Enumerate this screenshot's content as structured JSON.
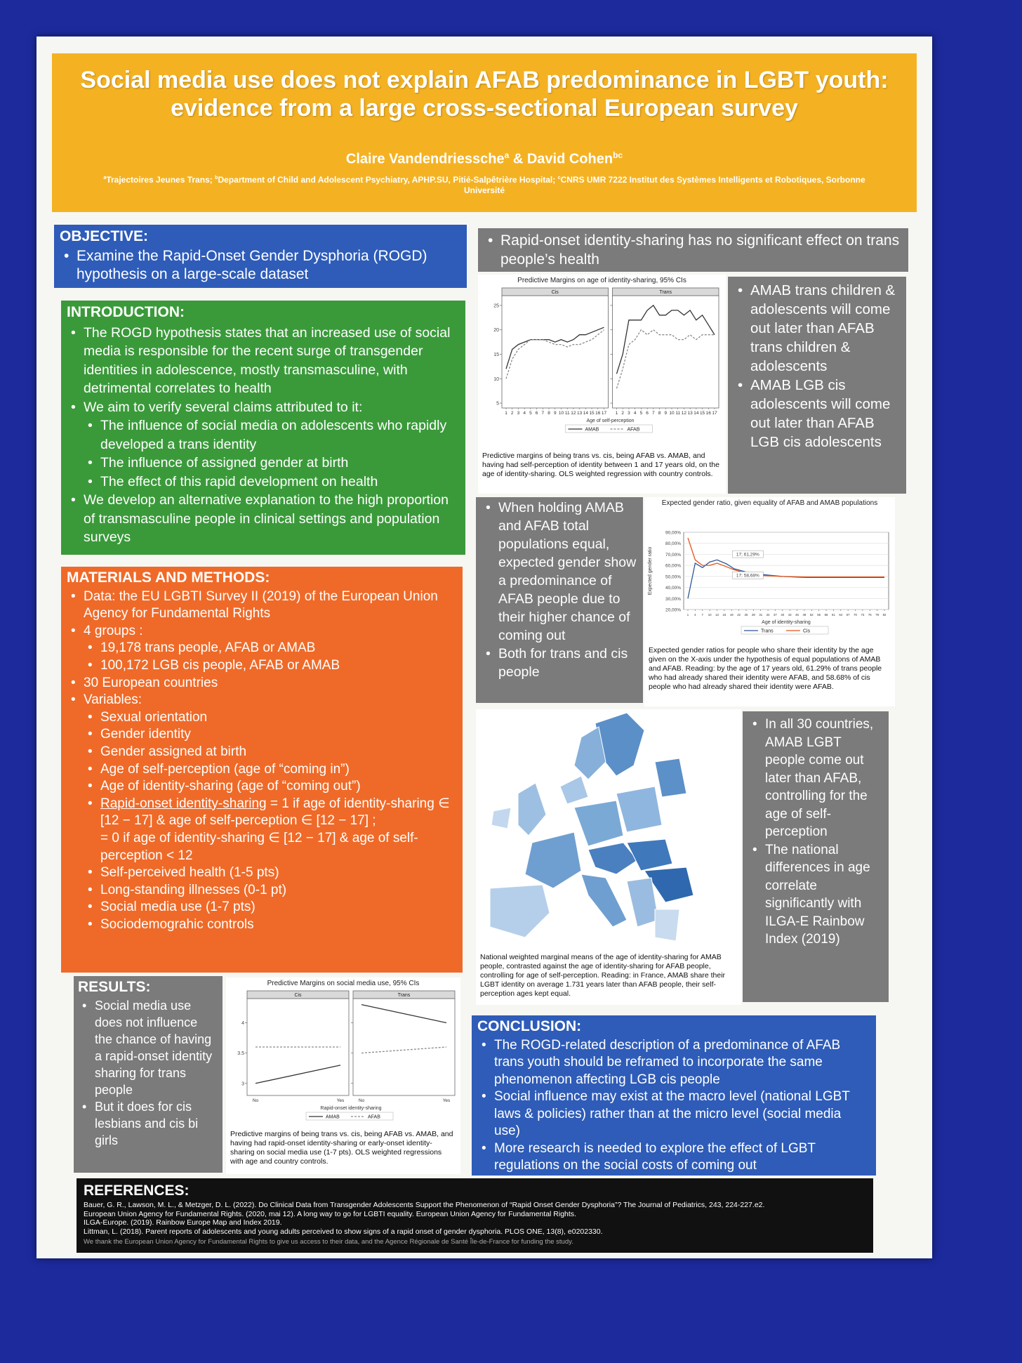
{
  "header": {
    "title": "Social media use does not explain AFAB predominance in LGBT youth: evidence from a large cross-sectional European survey",
    "authors": [
      {
        "name": "Claire Vandendriessche",
        "sup": "a"
      },
      {
        "name": "David Cohen",
        "sup": "bc"
      }
    ],
    "author_sep": "&",
    "affiliations": [
      {
        "sup": "a",
        "text": "Trajectoires Jeunes Trans;"
      },
      {
        "sup": "b",
        "text": "Department of Child and Adolescent Psychiatry, APHP.SU, Pitié-Salpêtrière Hospital;"
      },
      {
        "sup": "c",
        "text": "CNRS UMR 7222 Institut des Systèmes Intelligents et Robotiques, Sorbonne Université"
      }
    ]
  },
  "objective": {
    "heading": "OBJECTIVE:",
    "items": [
      {
        "text": "Examine the Rapid-Onset Gender Dysphoria (ROGD) hypothesis on a large-scale dataset"
      }
    ]
  },
  "introduction": {
    "heading": "INTRODUCTION:",
    "items": [
      {
        "text": "The ROGD hypothesis states that an increased use of social media is responsible for the recent surge of transgender identities in adolescence, mostly transmasculine, with detrimental correlates to health"
      },
      {
        "text": "We aim to verify several claims attributed to it:",
        "sub": [
          {
            "text": "The influence of social media on adolescents who rapidly developed a trans identity"
          },
          {
            "text": "The influence of assigned gender at birth"
          },
          {
            "text": "The effect of this rapid development on health"
          }
        ]
      },
      {
        "text": "We develop an alternative explanation to the high proportion of transmasculine people in clinical settings and population surveys"
      }
    ]
  },
  "methods": {
    "heading": "MATERIALS AND METHODS:",
    "items": [
      {
        "text": "Data: the EU LGBTI Survey II (2019) of the European Union Agency for Fundamental Rights"
      },
      {
        "text": "4 groups :",
        "sub": [
          {
            "text": "19,178 trans people, AFAB or AMAB"
          },
          {
            "text": "100,172 LGB cis people, AFAB or AMAB"
          }
        ]
      },
      {
        "text": "30 European countries"
      },
      {
        "text": "Variables:",
        "sub": [
          {
            "text": "Sexual orientation"
          },
          {
            "text": "Gender identity"
          },
          {
            "text": "Gender assigned at birth"
          },
          {
            "text": "Age of self-perception (age of “coming in”)"
          },
          {
            "text": "Age of identity-sharing (age of “coming out”)"
          },
          {
            "u": "Rapid-onset identity-sharing",
            "text": " = 1 if age of identity-sharing ∈ [12 − 17] & age of self-perception ∈ [12 − 17] ;",
            "more": "= 0 if age of identity-sharing ∈ [12 − 17] & age of self-perception < 12"
          },
          {
            "text": "Self-perceived health (1-5 pts)"
          },
          {
            "text": "Long-standing illnesses (0-1 pt)"
          },
          {
            "text": "Social media use (1-7 pts)"
          },
          {
            "text": "Sociodemograhic controls"
          }
        ]
      }
    ]
  },
  "results": {
    "heading": "RESULTS:",
    "items": [
      {
        "text": "Social media use does not influence the chance of having a rapid-onset identity sharing for trans people"
      },
      {
        "text": "But it does for cis lesbians and cis bi girls"
      }
    ]
  },
  "health": {
    "items": [
      {
        "text": "Rapid-onset identity-sharing has no significant effect on trans people’s health"
      }
    ]
  },
  "findings_1": {
    "items": [
      {
        "text": "AMAB trans children & adolescents will come out later than AFAB trans children & adolescents"
      },
      {
        "text": "AMAB LGB cis adolescents will come out later than AFAB LGB cis adolescents"
      }
    ]
  },
  "findings_2": {
    "items": [
      {
        "text": "When holding AMAB and AFAB total populations equal, expected gender show a predominance of AFAB people due to their higher chance of coming out"
      },
      {
        "text": "Both for trans and cis people"
      }
    ]
  },
  "findings_3": {
    "items": [
      {
        "text": "In all 30 countries, AMAB LGBT people come out later than AFAB, controlling for the age of self-perception"
      },
      {
        "text": "The national differences in age correlate significantly with ILGA-E Rainbow Index (2019)"
      }
    ]
  },
  "conclusion": {
    "heading": "CONCLUSION:",
    "items": [
      {
        "text": "The ROGD-related description of a predominance of AFAB trans youth should be reframed to incorporate the same phenomenon affecting LGB cis people"
      },
      {
        "text": "Social influence may exist at the macro level (national LGBT laws & policies) rather than at the micro level (social media use)"
      },
      {
        "text": "More research is needed to explore the effect of LGBT regulations on the social costs of coming out"
      }
    ]
  },
  "references": {
    "heading": "REFERENCES:",
    "items": [
      "Bauer, G. R., Lawson, M. L., & Metzger, D. L. (2022). Do Clinical Data from Transgender Adolescents Support the Phenomenon of “Rapid Onset Gender Dysphoria”? The Journal of Pediatrics, 243, 224-227.e2.",
      "European Union Agency for Fundamental Rights. (2020, mai 12). A long way to go for LGBTI equality. European Union Agency for Fundamental Rights.",
      "ILGA-Europe. (2019). Rainbow Europe Map and Index 2019.",
      "Littman, L. (2018). Parent reports of adolescents and young adults perceived to show signs of a rapid onset of gender dysphoria. PLOS ONE, 13(8), e0202330."
    ],
    "thanks": "We thank the European Union Agency for Fundamental Rights to give us access to their data, and the Agence Régionale de Santé Île-de-France for funding the study."
  },
  "figures": {
    "identity_sharing": {
      "type": "line",
      "title": "Predictive Margins on age of identity-sharing, 95% CIs",
      "x_label": "Age of self-perception",
      "x": [
        1,
        2,
        3,
        4,
        5,
        6,
        7,
        8,
        9,
        10,
        11,
        12,
        13,
        14,
        15,
        16,
        17
      ],
      "xlim": [
        1,
        17
      ],
      "xticks": [
        1,
        2,
        3,
        4,
        5,
        6,
        7,
        8,
        9,
        10,
        11,
        12,
        13,
        14,
        15,
        16,
        17
      ],
      "ylim": [
        4,
        27
      ],
      "yticks": [
        5,
        10,
        15,
        20,
        25
      ],
      "panels": [
        {
          "name": "Cis",
          "series": [
            {
              "name": "AMAB",
              "color": "#333333",
              "values": [
                12,
                16,
                17,
                17.5,
                18,
                18,
                18,
                18,
                17.5,
                18,
                17.5,
                18,
                19,
                19,
                19.5,
                20,
                20.5
              ]
            },
            {
              "name": "AFAB",
              "color": "#8a8a8a",
              "dashed": true,
              "values": [
                10,
                14,
                16,
                17,
                18,
                18,
                18,
                17.5,
                17,
                17,
                16.5,
                17,
                17,
                17.5,
                18,
                19,
                20
              ]
            }
          ]
        },
        {
          "name": "Trans",
          "series": [
            {
              "name": "AMAB",
              "color": "#333333",
              "values": [
                11,
                15,
                22,
                22,
                22,
                24,
                25,
                23,
                23,
                24,
                24,
                23,
                24,
                22,
                23,
                21,
                19
              ]
            },
            {
              "name": "AFAB",
              "color": "#8a8a8a",
              "dashed": true,
              "values": [
                8,
                12,
                17,
                18,
                20,
                19,
                20,
                19,
                19,
                19,
                18,
                18,
                19,
                18,
                19,
                19,
                19
              ]
            }
          ]
        }
      ],
      "caption": "Predictive margins of being trans vs. cis, being AFAB vs. AMAB, and having had self-perception of identity between 1 and 17 years old, on the age of identity-sharing. OLS weighted regression with country controls."
    },
    "gender_ratio": {
      "type": "line",
      "title": "Expected gender ratio, given equality of AFAB and AMAB populations",
      "x_label": "Age of identity-sharing",
      "y_label": "Expected gender ratio",
      "x": [
        1,
        4,
        7,
        10,
        13,
        17,
        20,
        25,
        30,
        40,
        50,
        60,
        70,
        82
      ],
      "xlim": [
        1,
        82
      ],
      "xticks": [
        1,
        4,
        7,
        10,
        13,
        16,
        19,
        22,
        25,
        28,
        31,
        34,
        37,
        40,
        43,
        46,
        49,
        52,
        55,
        58,
        61,
        64,
        67,
        70,
        73,
        76,
        79,
        82
      ],
      "ylim": [
        20,
        90
      ],
      "yticks": [
        {
          "value": 20,
          "label": "20,00%"
        },
        {
          "value": 30,
          "label": "30,00%"
        },
        {
          "value": 40,
          "label": "40,00%"
        },
        {
          "value": 50,
          "label": "50,00%"
        },
        {
          "value": 60,
          "label": "60,00%"
        },
        {
          "value": 70,
          "label": "70,00%"
        },
        {
          "value": 80,
          "label": "80,00%"
        },
        {
          "value": 90,
          "label": "90,00%"
        }
      ],
      "grid": true,
      "series": [
        {
          "name": "Trans",
          "color": "#2f5597",
          "values": [
            30,
            62,
            58,
            63,
            65,
            61.29,
            57,
            54,
            52,
            50,
            49,
            49,
            49,
            49
          ],
          "annotation": "17; 61,29%"
        },
        {
          "name": "Cis",
          "color": "#e2541b",
          "values": [
            85,
            65,
            60,
            60,
            62,
            58.68,
            56,
            53,
            51,
            50,
            49.5,
            49.5,
            49.5,
            49.5
          ],
          "annotation": "17; 58,68%"
        }
      ],
      "caption": "Expected gender ratios for people who share their identity by the age given on the X-axis under the hypothesis of equal populations of AMAB and AFAB. Reading: by the age of 17 years old, 61.29% of trans people who had already shared their identity were AFAB, and 58.68% of cis people who had already shared their identity were AFAB."
    },
    "social_media": {
      "type": "line",
      "title": "Predictive Margins on social media use, 95% CIs",
      "x_label": "Rapid-onset identity-sharing",
      "categories": [
        "No",
        "Yes"
      ],
      "ylim": [
        2.8,
        4.4
      ],
      "yticks": [
        3,
        3.5,
        4
      ],
      "panels": [
        {
          "name": "Cis",
          "series": [
            {
              "name": "AMAB",
              "color": "#333333",
              "values": [
                3.0,
                3.3
              ]
            },
            {
              "name": "AFAB",
              "color": "#8a8a8a",
              "dashed": true,
              "values": [
                3.6,
                3.6
              ]
            }
          ]
        },
        {
          "name": "Trans",
          "series": [
            {
              "name": "AMAB",
              "color": "#333333",
              "values": [
                4.3,
                4.0
              ]
            },
            {
              "name": "AFAB",
              "color": "#8a8a8a",
              "dashed": true,
              "values": [
                3.5,
                3.6
              ]
            }
          ]
        }
      ],
      "caption": "Predictive margins of being trans vs. cis, being AFAB vs. AMAB, and having had rapid-onset identity-sharing or early-onset identity-sharing on social media use (1-7 pts). OLS weighted regressions with age and country controls."
    },
    "map": {
      "caption": "National weighted marginal means of the age of identity-sharing for AMAB people, contrasted against the age of identity-sharing for AFAB people, controlling for age of self-perception. Reading: in France, AMAB share their LGBT identity on average 1.731 years later than AFAB people, their self-perception ages kept equal."
    }
  }
}
